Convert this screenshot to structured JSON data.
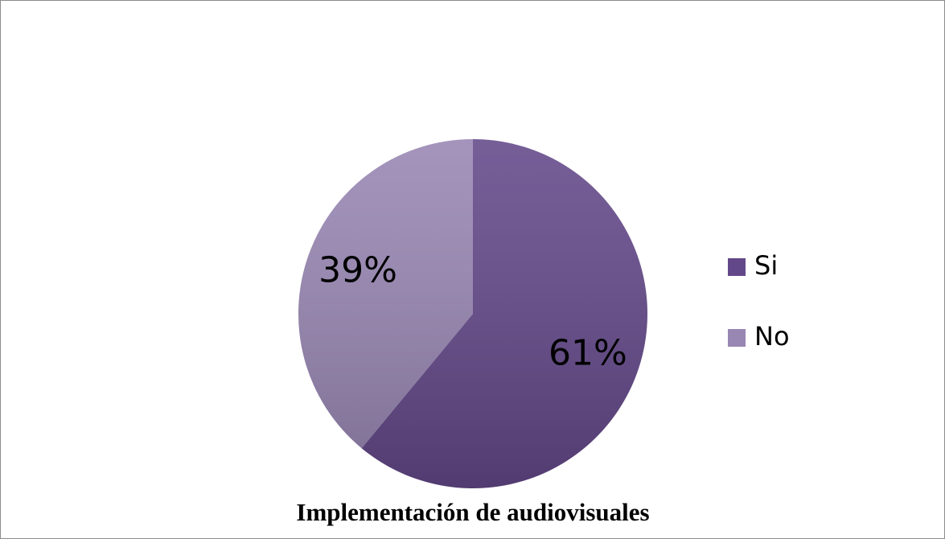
{
  "chart_data": {
    "type": "pie",
    "title": "Implementación de audiovisuales",
    "categories": [
      "Si",
      "No"
    ],
    "values": [
      61,
      39
    ],
    "value_labels": [
      "61%",
      "39%"
    ],
    "colors": [
      "#634889",
      "#9886b3"
    ],
    "legend": "right"
  }
}
